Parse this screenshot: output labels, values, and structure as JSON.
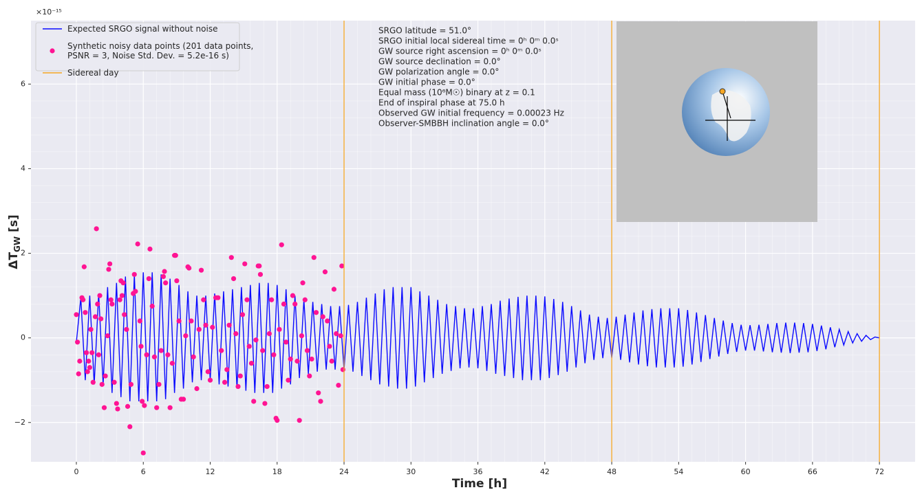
{
  "chart_data": {
    "type": "line",
    "offset_label": "×10⁻¹⁵",
    "xlabel": "Time [h]",
    "ylabel": [
      "ΔT",
      "GW",
      " [s]"
    ],
    "xlim": [
      -4.07,
      75.2
    ],
    "ylim": [
      -2.93,
      7.5
    ],
    "xticks": [
      0,
      6,
      12,
      18,
      24,
      30,
      36,
      42,
      48,
      54,
      60,
      66,
      72
    ],
    "yticks": [
      {
        "value": -2,
        "label": "−2"
      },
      0,
      2,
      4,
      6
    ],
    "grid": true,
    "legend": "upper left",
    "annotations": [
      "SRGO latitude  =  51.0°",
      "SRGO initial local sidereal time  =  0ʰ 0ᵐ 0.0ˢ",
      "GW source right ascension  =  0ʰ 0ᵐ 0.0ˢ",
      "GW source declination  =  0.0°",
      "GW polarization angle  =  0.0°",
      "GW initial phase  =  0.0°",
      "Equal mass (10⁶M☉) binary at z = 0.1",
      "End of inspiral phase at 75.0 h",
      "Observed GW initial frequency  =  0.00023 Hz",
      "Observer-SMBBH inclination angle  =  0.0°"
    ],
    "series": [
      {
        "name": "Expected SRGO signal without noise",
        "type": "line",
        "color": "#0a0aff",
        "x": [
          0,
          0.4,
          0.8,
          1.2,
          1.6,
          2,
          2.4,
          2.8,
          3.2,
          3.6,
          4,
          4.4,
          4.8,
          5.2,
          5.6,
          6,
          6.4,
          6.8,
          7.2,
          7.6,
          8,
          8.4,
          8.8,
          9.2,
          9.6,
          10,
          10.4,
          10.8,
          11.2,
          11.6,
          12,
          12.4,
          12.8,
          13.2,
          13.6,
          14,
          14.4,
          14.8,
          15.2,
          15.6,
          16,
          16.4,
          16.8,
          17.2,
          17.6,
          18,
          18.4,
          18.8,
          19.2,
          19.6,
          20,
          20.4,
          20.8,
          21.2,
          21.6,
          22,
          22.4,
          22.8,
          23.2,
          23.6,
          24,
          24.4,
          24.8,
          25.2,
          25.6,
          26,
          26.4,
          26.8,
          27.2,
          27.6,
          28,
          28.4,
          28.8,
          29.2,
          29.6,
          30,
          30.4,
          30.8,
          31.2,
          31.6,
          32,
          32.4,
          32.8,
          33.2,
          33.6,
          34,
          34.4,
          34.8,
          35.2,
          35.6,
          36,
          36.4,
          36.8,
          37.2,
          37.6,
          38,
          38.4,
          38.8,
          39.2,
          39.6,
          40,
          40.4,
          40.8,
          41.2,
          41.6,
          42,
          42.4,
          42.8,
          43.2,
          43.6,
          44,
          44.4,
          44.8,
          45.2,
          45.6,
          46,
          46.4,
          46.8,
          47.2,
          47.6,
          48,
          48.4,
          48.8,
          49.2,
          49.6,
          50,
          50.4,
          50.8,
          51.2,
          51.6,
          52,
          52.4,
          52.8,
          53.2,
          53.6,
          54,
          54.4,
          54.8,
          55.2,
          55.6,
          56,
          56.4,
          56.8,
          57.2,
          57.6,
          58,
          58.4,
          58.8,
          59.2,
          59.6,
          60,
          60.4,
          60.8,
          61.2,
          61.6,
          62,
          62.4,
          62.8,
          63.2,
          63.6,
          64,
          64.4,
          64.8,
          65.2,
          65.6,
          66,
          66.4,
          66.8,
          67.2,
          67.6,
          68,
          68.4,
          68.8,
          69.2,
          69.6,
          70,
          70.4,
          70.8,
          71.2,
          71.6,
          72
        ],
        "values": [
          -0.1,
          0.95,
          -1.0,
          1.0,
          -1.1,
          1.05,
          -1.1,
          1.2,
          -1.3,
          1.3,
          -1.4,
          1.45,
          -1.5,
          1.5,
          -1.5,
          1.55,
          -1.5,
          1.55,
          -1.5,
          1.5,
          -1.45,
          1.4,
          -1.3,
          1.25,
          -1.2,
          1.1,
          -1.05,
          1.0,
          -1.0,
          1.0,
          -1.0,
          1.05,
          -1.1,
          1.1,
          -1.15,
          1.15,
          -1.2,
          1.2,
          -1.25,
          1.25,
          -1.3,
          1.3,
          -1.3,
          1.3,
          -1.3,
          1.25,
          -1.2,
          1.15,
          -1.1,
          1.0,
          -0.95,
          0.9,
          -0.85,
          0.85,
          -0.8,
          0.8,
          -0.75,
          0.75,
          -0.75,
          0.75,
          -0.75,
          0.78,
          -0.8,
          0.85,
          -0.9,
          0.95,
          -1.0,
          1.05,
          -1.1,
          1.15,
          -1.15,
          1.2,
          -1.2,
          1.2,
          -1.2,
          1.2,
          -1.15,
          1.1,
          -1.05,
          1.0,
          -0.95,
          0.9,
          -0.85,
          0.8,
          -0.78,
          0.75,
          -0.72,
          0.7,
          -0.7,
          0.7,
          -0.72,
          0.75,
          -0.78,
          0.8,
          -0.85,
          0.88,
          -0.9,
          0.93,
          -0.95,
          0.97,
          -1.0,
          1.0,
          -1.0,
          1.0,
          -1.0,
          0.98,
          -0.95,
          0.92,
          -0.88,
          0.85,
          -0.8,
          0.75,
          -0.7,
          0.65,
          -0.6,
          0.55,
          -0.52,
          0.5,
          -0.48,
          0.47,
          -0.47,
          0.5,
          -0.52,
          0.55,
          -0.58,
          0.6,
          -0.63,
          0.65,
          -0.67,
          0.68,
          -0.7,
          0.7,
          -0.7,
          0.7,
          -0.7,
          0.7,
          -0.68,
          0.66,
          -0.63,
          0.6,
          -0.57,
          0.54,
          -0.5,
          0.47,
          -0.44,
          0.41,
          -0.38,
          0.35,
          -0.33,
          0.31,
          -0.3,
          0.3,
          -0.3,
          0.31,
          -0.32,
          0.33,
          -0.34,
          0.35,
          -0.35,
          0.36,
          -0.36,
          0.36,
          -0.35,
          0.35,
          -0.34,
          0.33,
          -0.31,
          0.29,
          -0.27,
          0.25,
          -0.22,
          0.2,
          -0.17,
          0.15,
          -0.12,
          0.1,
          -0.08,
          0.06,
          -0.04,
          0.02,
          0.0
        ]
      },
      {
        "name": "Synthetic noisy data points (201 data points,\nPSNR  =  3, Noise Std. Dev.  =  5.2e-16 s)",
        "type": "scatter",
        "color": "#ff1493",
        "x": [
          0.0,
          0.1,
          0.2,
          0.3,
          0.5,
          0.6,
          0.7,
          0.8,
          0.9,
          1.0,
          1.1,
          1.2,
          1.3,
          1.4,
          1.5,
          1.7,
          1.8,
          1.9,
          2.0,
          2.1,
          2.2,
          2.3,
          2.5,
          2.6,
          2.8,
          2.9,
          3.0,
          3.1,
          3.2,
          3.4,
          3.6,
          3.7,
          3.9,
          4.0,
          4.1,
          4.2,
          4.3,
          4.5,
          4.6,
          4.8,
          4.9,
          5.1,
          5.2,
          5.3,
          5.5,
          5.7,
          5.8,
          5.9,
          6.0,
          6.1,
          6.3,
          6.5,
          6.6,
          6.8,
          7.0,
          7.2,
          7.4,
          7.6,
          7.8,
          7.9,
          8.0,
          8.2,
          8.4,
          8.6,
          8.8,
          8.9,
          9.0,
          9.2,
          9.4,
          9.6,
          9.8,
          10.0,
          10.1,
          10.3,
          10.5,
          10.8,
          11.0,
          11.2,
          11.4,
          11.6,
          11.8,
          12.0,
          12.2,
          12.5,
          12.7,
          13.0,
          13.3,
          13.5,
          13.7,
          13.9,
          14.1,
          14.3,
          14.5,
          14.7,
          14.9,
          15.1,
          15.3,
          15.5,
          15.7,
          15.9,
          16.1,
          16.3,
          16.4,
          16.5,
          16.7,
          16.9,
          17.1,
          17.3,
          17.5,
          17.7,
          17.9,
          18.0,
          18.2,
          18.4,
          18.6,
          18.8,
          19.0,
          19.2,
          19.4,
          19.6,
          19.8,
          20.0,
          20.2,
          20.3,
          20.5,
          20.7,
          20.9,
          21.1,
          21.3,
          21.5,
          21.7,
          21.9,
          22.1,
          22.3,
          22.5,
          22.7,
          22.9,
          23.1,
          23.3,
          23.5,
          23.7,
          23.8,
          23.9
        ],
        "values": [
          0.55,
          -0.1,
          -0.85,
          -0.55,
          0.95,
          0.9,
          1.68,
          0.6,
          -0.35,
          -0.8,
          -0.55,
          -0.7,
          0.2,
          -0.35,
          -1.05,
          0.5,
          2.58,
          0.8,
          -0.4,
          1.0,
          0.45,
          -1.1,
          -1.65,
          -0.9,
          0.05,
          1.62,
          1.75,
          0.9,
          0.8,
          -1.05,
          -1.55,
          -1.68,
          0.9,
          1.35,
          1.0,
          1.3,
          0.55,
          0.2,
          -1.62,
          -2.1,
          -1.1,
          1.05,
          1.5,
          1.1,
          2.22,
          0.4,
          -0.2,
          -1.5,
          -2.72,
          -1.6,
          -0.4,
          1.4,
          2.1,
          0.75,
          -0.45,
          -1.65,
          -1.1,
          -0.3,
          1.45,
          1.57,
          1.3,
          -0.4,
          -1.65,
          -0.6,
          1.95,
          1.95,
          1.35,
          0.4,
          -1.45,
          -1.45,
          0.05,
          1.68,
          1.65,
          0.4,
          -0.45,
          -1.2,
          0.2,
          1.6,
          0.9,
          0.3,
          -0.8,
          -1.0,
          0.25,
          0.95,
          0.95,
          -0.3,
          -1.05,
          -0.75,
          0.3,
          1.9,
          1.4,
          0.1,
          -1.15,
          -0.9,
          0.55,
          1.75,
          0.9,
          -0.2,
          -0.6,
          -1.5,
          -0.05,
          1.7,
          1.7,
          1.5,
          -0.3,
          -1.55,
          -1.15,
          0.1,
          0.9,
          -0.4,
          -1.9,
          -1.95,
          0.2,
          2.2,
          0.8,
          -0.1,
          -1.0,
          -0.5,
          1.0,
          0.8,
          -0.55,
          -1.95,
          0.05,
          1.3,
          0.9,
          -0.3,
          -0.9,
          -0.5,
          1.9,
          0.6,
          -1.3,
          -1.5,
          0.5,
          1.56,
          0.4,
          -0.2,
          -0.55,
          1.15,
          0.1,
          -1.12,
          0.05,
          1.7,
          -0.75
        ]
      },
      {
        "name": "Sidereal day",
        "type": "vline",
        "color": "#f5a623",
        "x": [
          24,
          48,
          72
        ]
      }
    ]
  }
}
